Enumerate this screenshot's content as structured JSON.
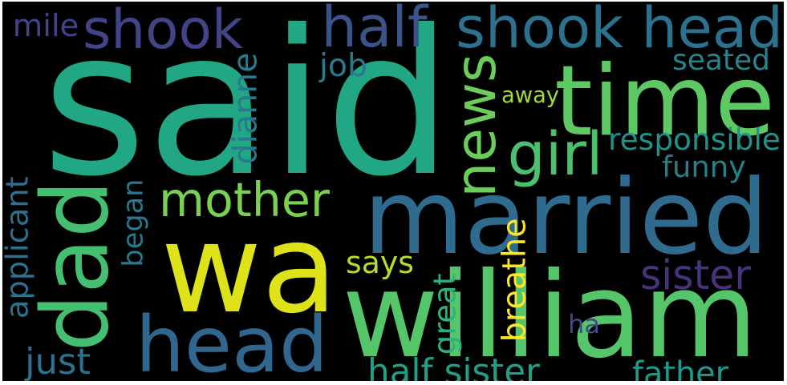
{
  "words": [
    {
      "text": "said",
      "color": "#22a785"
    },
    {
      "text": "wa",
      "color": "#dde318"
    },
    {
      "text": "william",
      "color": "#54c568"
    },
    {
      "text": "married",
      "color": "#2f6b8e"
    },
    {
      "text": "time",
      "color": "#5ec962"
    },
    {
      "text": "head",
      "color": "#31668e"
    },
    {
      "text": "dad",
      "color": "#44bf70"
    },
    {
      "text": "shook head",
      "color": "#2c728e"
    },
    {
      "text": "half",
      "color": "#3b528b"
    },
    {
      "text": "shook",
      "color": "#414487"
    },
    {
      "text": "news",
      "color": "#6ccd5a"
    },
    {
      "text": "girl",
      "color": "#4ac16d"
    },
    {
      "text": "mother",
      "color": "#7ad151"
    },
    {
      "text": "half sister",
      "color": "#1fa088"
    },
    {
      "text": "mile",
      "color": "#414487"
    },
    {
      "text": "job",
      "color": "#2a788e"
    },
    {
      "text": "seated",
      "color": "#25858e"
    },
    {
      "text": "responsible",
      "color": "#21918c"
    },
    {
      "text": "away",
      "color": "#a0da39"
    },
    {
      "text": "funny",
      "color": "#277f8e"
    },
    {
      "text": "dianne",
      "color": "#29798e"
    },
    {
      "text": "applicant",
      "color": "#2d708e"
    },
    {
      "text": "began",
      "color": "#2a788e"
    },
    {
      "text": "says",
      "color": "#b5de2b"
    },
    {
      "text": "sister",
      "color": "#46327e"
    },
    {
      "text": "breathe",
      "color": "#fde725"
    },
    {
      "text": "great",
      "color": "#2db27d"
    },
    {
      "text": "ha",
      "color": "#3e4a89"
    },
    {
      "text": "just",
      "color": "#2c728e"
    },
    {
      "text": "father",
      "color": "#1f9a8a"
    }
  ]
}
